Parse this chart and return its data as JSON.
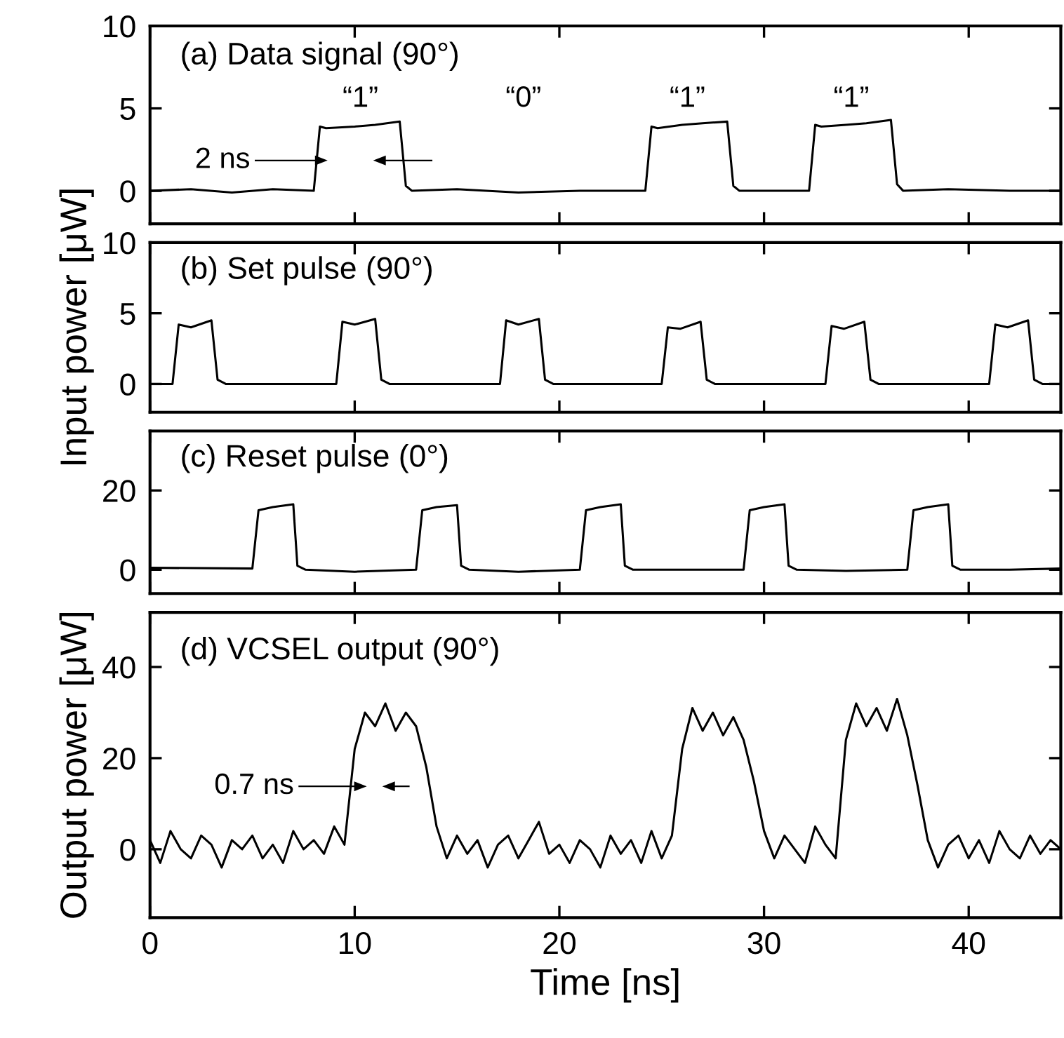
{
  "chart_data": [
    {
      "type": "line",
      "title": "(a) Data signal (90°)",
      "tick_labels": "y",
      "xlim": [
        0,
        44.5
      ],
      "xticks": [
        0,
        10,
        20,
        30,
        40
      ],
      "ylim": [
        -2,
        10
      ],
      "yticks": [
        0,
        5,
        10
      ],
      "grid": false,
      "annotations": [
        "“1”",
        "“0”",
        "“1”",
        "“1”",
        "2 ns"
      ],
      "series": [
        {
          "color": "#000000",
          "x": [
            0,
            2,
            4,
            6,
            8.0,
            8.3,
            8.6,
            10,
            11,
            12.2,
            12.5,
            12.8,
            15,
            18,
            21,
            24.2,
            24.5,
            24.8,
            26,
            27,
            28.2,
            28.5,
            28.8,
            30,
            32.2,
            32.5,
            32.8,
            34,
            35,
            36.2,
            36.5,
            36.8,
            39,
            42,
            44.5
          ],
          "values": [
            0,
            0.1,
            -0.1,
            0.1,
            0,
            3.9,
            3.8,
            3.9,
            4.0,
            4.2,
            0.3,
            0,
            0.1,
            -0.1,
            0,
            0,
            3.9,
            3.8,
            4.0,
            4.1,
            4.2,
            0.3,
            0,
            0,
            0,
            4.0,
            3.9,
            4.0,
            4.1,
            4.3,
            0.4,
            0,
            0.1,
            0,
            0
          ]
        }
      ]
    },
    {
      "type": "line",
      "title": "(b) Set pulse (90°)",
      "ylabel": "Input power [μW]",
      "tick_labels": "y",
      "xlim": [
        0,
        44.5
      ],
      "xticks": [
        0,
        10,
        20,
        30,
        40
      ],
      "ylim": [
        -2,
        10
      ],
      "yticks": [
        0,
        5,
        10
      ],
      "grid": false,
      "series": [
        {
          "color": "#000000",
          "x": [
            0,
            1.1,
            1.4,
            2.0,
            3.0,
            3.3,
            3.7,
            6,
            9.1,
            9.4,
            10.0,
            11.0,
            11.3,
            11.7,
            14,
            17.1,
            17.4,
            18.0,
            19.0,
            19.3,
            19.7,
            22,
            25.0,
            25.3,
            25.9,
            26.9,
            27.2,
            27.6,
            30,
            33.0,
            33.3,
            33.9,
            34.9,
            35.2,
            35.6,
            38,
            41.0,
            41.3,
            41.9,
            42.9,
            43.2,
            43.6,
            44.5
          ],
          "values": [
            0,
            0,
            4.2,
            4.0,
            4.5,
            0.3,
            0,
            0,
            0,
            4.4,
            4.2,
            4.6,
            0.3,
            0,
            0,
            0,
            4.5,
            4.2,
            4.6,
            0.3,
            0,
            0,
            0,
            4.0,
            3.9,
            4.4,
            0.3,
            0,
            0,
            0,
            4.1,
            3.9,
            4.4,
            0.3,
            0,
            0,
            0,
            4.2,
            4.0,
            4.5,
            0.3,
            0,
            0
          ]
        }
      ]
    },
    {
      "type": "line",
      "title": "(c) Reset pulse (0°)",
      "tick_labels": "y",
      "xlim": [
        0,
        44.5
      ],
      "xticks": [
        0,
        10,
        20,
        30,
        40
      ],
      "ylim": [
        -6,
        35
      ],
      "yticks": [
        0,
        20
      ],
      "grid": false,
      "series": [
        {
          "color": "#000000",
          "x": [
            0,
            5.0,
            5.3,
            6.0,
            7.0,
            7.2,
            7.6,
            10,
            13.0,
            13.3,
            14.0,
            15.0,
            15.2,
            15.6,
            18,
            21.0,
            21.3,
            22.0,
            23.0,
            23.2,
            23.6,
            26,
            29.0,
            29.3,
            30.0,
            31.0,
            31.2,
            31.6,
            34,
            37.0,
            37.3,
            38.0,
            39.0,
            39.2,
            39.6,
            42,
            44.5
          ],
          "values": [
            0.5,
            0.3,
            15,
            15.8,
            16.5,
            1,
            0,
            -0.5,
            0,
            15,
            15.8,
            16.3,
            1,
            0,
            -0.5,
            0,
            15,
            15.8,
            16.5,
            1,
            0,
            0,
            0,
            15,
            15.8,
            16.5,
            1,
            0,
            -0.3,
            0,
            15,
            15.8,
            16.5,
            1,
            0,
            0,
            0.3
          ]
        }
      ]
    },
    {
      "type": "line",
      "title": "(d) VCSEL output (90°)",
      "ylabel": "Output power [μW]",
      "xlabel": "Time [ns]",
      "xlim": [
        0,
        44.5
      ],
      "xticks": [
        0,
        10,
        20,
        30,
        40
      ],
      "ylim": [
        -15,
        52
      ],
      "yticks": [
        0,
        20,
        40
      ],
      "grid": false,
      "annotations": [
        "0.7 ns"
      ],
      "series": [
        {
          "color": "#000000",
          "x": [
            0,
            0.5,
            1,
            1.5,
            2,
            2.5,
            3,
            3.5,
            4,
            4.5,
            5,
            5.5,
            6,
            6.5,
            7,
            7.5,
            8,
            8.5,
            9,
            9.5,
            10,
            10.5,
            11,
            11.5,
            12,
            12.5,
            13,
            13.5,
            14,
            14.5,
            15,
            15.5,
            16,
            16.5,
            17,
            17.5,
            18,
            18.5,
            19,
            19.5,
            20,
            20.5,
            21,
            21.5,
            22,
            22.5,
            23,
            23.5,
            24,
            24.5,
            25,
            25.5,
            26,
            26.5,
            27,
            27.5,
            28,
            28.5,
            29,
            29.5,
            30,
            30.5,
            31,
            31.5,
            32,
            32.5,
            33,
            33.5,
            34,
            34.5,
            35,
            35.5,
            36,
            36.5,
            37,
            37.5,
            38,
            38.5,
            39,
            39.5,
            40,
            40.5,
            41,
            41.5,
            42,
            42.5,
            43,
            43.5,
            44,
            44.5
          ],
          "values": [
            2,
            -3,
            4,
            0,
            -2,
            3,
            1,
            -4,
            2,
            0,
            3,
            -2,
            1,
            -3,
            4,
            0,
            2,
            -1,
            5,
            1,
            22,
            30,
            27,
            32,
            26,
            30,
            27,
            18,
            5,
            -2,
            3,
            -1,
            2,
            -4,
            1,
            3,
            -2,
            2,
            6,
            -1,
            1,
            -3,
            2,
            0,
            -4,
            3,
            -1,
            2,
            -3,
            4,
            -2,
            3,
            22,
            31,
            26,
            30,
            25,
            29,
            24,
            15,
            4,
            -2,
            3,
            0,
            -3,
            5,
            1,
            -2,
            24,
            32,
            27,
            31,
            26,
            33,
            25,
            14,
            2,
            -4,
            1,
            3,
            -2,
            2,
            -3,
            4,
            0,
            -2,
            3,
            -1,
            2,
            0
          ]
        }
      ]
    }
  ]
}
